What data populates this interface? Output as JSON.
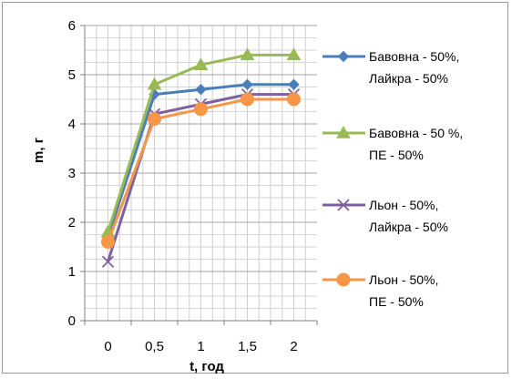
{
  "chart_data": {
    "type": "line",
    "title": "",
    "xlabel": "t, год",
    "ylabel": "m, г",
    "x": [
      0,
      0.5,
      1,
      1.5,
      2
    ],
    "x_tick_labels": [
      "0",
      "0,5",
      "1",
      "1,5",
      "2"
    ],
    "ylim": [
      0,
      6
    ],
    "y_ticks": [
      0,
      1,
      2,
      3,
      4,
      5,
      6
    ],
    "grid": true,
    "legend_position": "right",
    "series": [
      {
        "name": "Бавовна - 50%, Лайкра - 50%",
        "legend_lines": [
          "Бавовна - 50%,",
          "Лайкра - 50%"
        ],
        "values": [
          1.7,
          4.6,
          4.7,
          4.8,
          4.8
        ],
        "color": "#4a7ebb",
        "marker": "diamond"
      },
      {
        "name": "Бавовна - 50 %, ПЕ - 50%",
        "legend_lines": [
          "Бавовна - 50 %,",
          "ПЕ - 50%"
        ],
        "values": [
          1.8,
          4.8,
          5.2,
          5.4,
          5.4
        ],
        "color": "#98b954",
        "marker": "triangle"
      },
      {
        "name": "Льон - 50%, Лайкра - 50%",
        "legend_lines": [
          "Льон - 50%,",
          "Лайкра - 50%"
        ],
        "values": [
          1.2,
          4.2,
          4.4,
          4.6,
          4.6
        ],
        "color": "#7d60a0",
        "marker": "x"
      },
      {
        "name": "Льон - 50%, ПЕ - 50%",
        "legend_lines": [
          "Льон - 50%,",
          "ПЕ - 50%"
        ],
        "values": [
          1.6,
          4.1,
          4.3,
          4.5,
          4.5
        ],
        "color": "#f79646",
        "marker": "circle"
      }
    ]
  }
}
